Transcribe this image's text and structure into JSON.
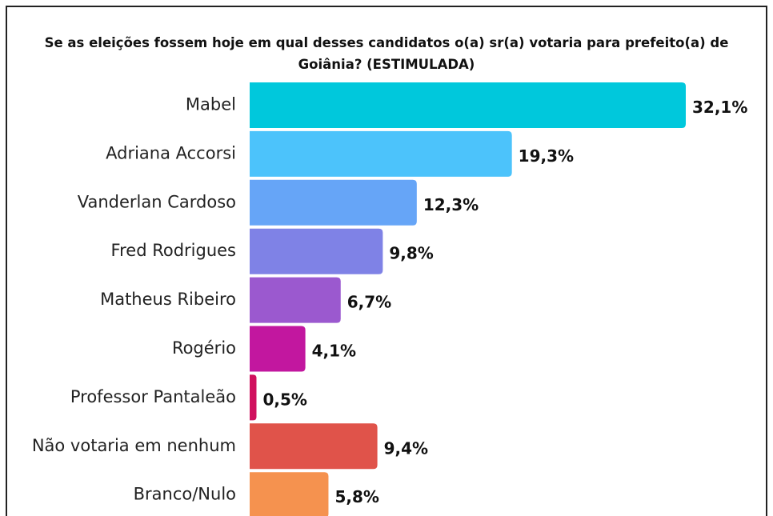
{
  "chart_data": {
    "type": "bar",
    "orientation": "horizontal",
    "title": "Se as eleições fossem hoje em qual desses candidatos o(a) sr(a) votaria para prefeito(a) de Goiânia? (ESTIMULADA)",
    "categories": [
      "Mabel",
      "Adriana Accorsi",
      "Vanderlan Cardoso",
      "Fred Rodrigues",
      "Matheus Ribeiro",
      "Rogério",
      "Professor Pantaleão",
      "Não votaria em nenhum",
      "Branco/Nulo"
    ],
    "values": [
      32.1,
      19.3,
      12.3,
      9.8,
      6.7,
      4.1,
      0.5,
      9.4,
      5.8
    ],
    "value_labels": [
      "32,1%",
      "19,3%",
      "12,3%",
      "9,8%",
      "6,7%",
      "4,1%",
      "0,5%",
      "9,4%",
      "5,8%"
    ],
    "colors": [
      "#00c8dc",
      "#4cc3fb",
      "#66a5f7",
      "#7f82e6",
      "#9b59cf",
      "#c2179f",
      "#d0105e",
      "#e0534a",
      "#f5924f"
    ]
  }
}
